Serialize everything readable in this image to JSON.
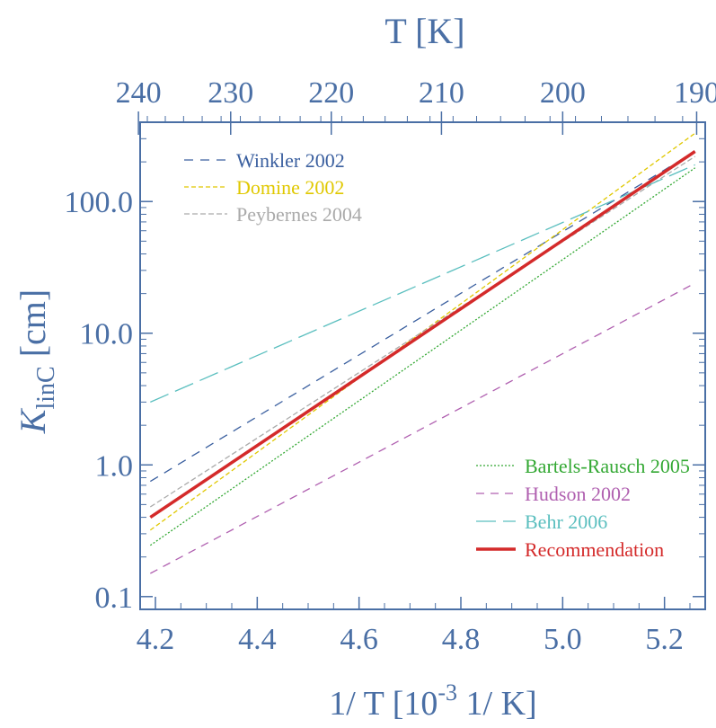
{
  "chart_data": {
    "type": "line",
    "title": "",
    "top_axis_label": "T [K]",
    "top_axis_ticks": [
      "240",
      "230",
      "220",
      "210",
      "200",
      "190"
    ],
    "xlabel_main": "1/ T [10",
    "xlabel_sup": "-3",
    "xlabel_tail": " 1/ K]",
    "ylabel_main": "K",
    "ylabel_sub": "linC",
    "ylabel_tail": " [cm]",
    "x_ticks": [
      "4.2",
      "4.4",
      "4.6",
      "4.8",
      "5.0",
      "5.2"
    ],
    "y_ticks": [
      "0.1",
      "1.0",
      "10.0",
      "100.0"
    ],
    "y_scale": "log",
    "xlim": [
      4.17,
      5.28
    ],
    "ylim": [
      0.08,
      400
    ],
    "axis_color": "#4a6fa5",
    "series": [
      {
        "name": "Winkler 2002",
        "color": "#3a5f9f",
        "dash": "10,8",
        "width": 1.3,
        "legend_group": "top",
        "x": [
          4.19,
          5.26
        ],
        "y": [
          0.75,
          240
        ]
      },
      {
        "name": "Domine 2002",
        "color": "#e0c800",
        "dash": "5,3",
        "width": 1.3,
        "legend_group": "top",
        "x": [
          4.19,
          5.26
        ],
        "y": [
          0.32,
          330
        ]
      },
      {
        "name": "Peybernes 2004",
        "color": "#aaaaaa",
        "dash": "6,3",
        "width": 1.3,
        "legend_group": "top",
        "x": [
          4.19,
          5.26
        ],
        "y": [
          0.48,
          220
        ]
      },
      {
        "name": "Bartels-Rausch 2005",
        "color": "#33a833",
        "dash": "2,2",
        "width": 1.3,
        "legend_group": "bottom",
        "x": [
          4.19,
          5.26
        ],
        "y": [
          0.245,
          180
        ]
      },
      {
        "name": "Hudson 2002",
        "color": "#b060b0",
        "dash": "9,7",
        "width": 1.3,
        "legend_group": "bottom",
        "x": [
          4.19,
          5.26
        ],
        "y": [
          0.15,
          24
        ]
      },
      {
        "name": "Behr 2006",
        "color": "#5bbfbf",
        "dash": "22,8",
        "width": 1.3,
        "legend_group": "bottom",
        "x": [
          4.19,
          5.26
        ],
        "y": [
          3.0,
          190
        ]
      },
      {
        "name": "Recommendation",
        "color": "#d42a2a",
        "dash": "",
        "width": 3.5,
        "legend_group": "bottom",
        "x": [
          4.19,
          5.26
        ],
        "y": [
          0.4,
          240
        ]
      }
    ],
    "legend": {
      "top": [
        "Winkler 2002",
        "Domine 2002",
        "Peybernes 2004"
      ],
      "bottom": [
        "Bartels-Rausch 2005",
        "Hudson 2002",
        "Behr 2006",
        "Recommendation"
      ]
    }
  }
}
